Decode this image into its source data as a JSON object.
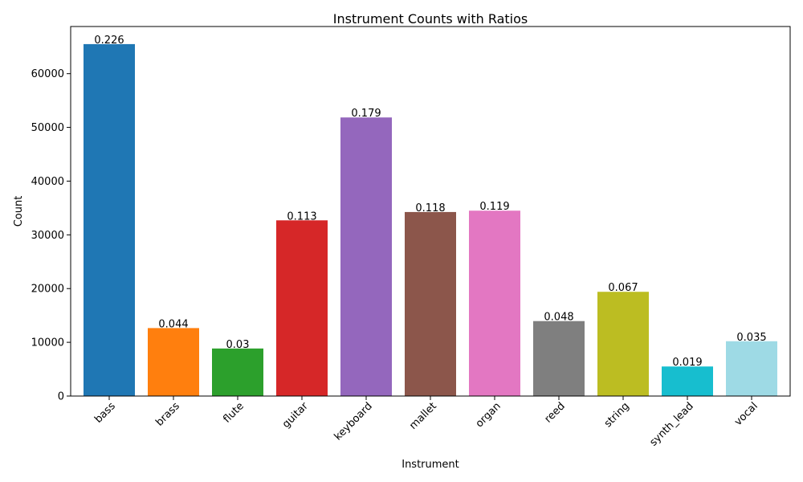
{
  "chart_data": {
    "type": "bar",
    "title": "Instrument Counts with Ratios",
    "xlabel": "Instrument",
    "ylabel": "Count",
    "categories": [
      "bass",
      "brass",
      "flute",
      "guitar",
      "keyboard",
      "mallet",
      "organ",
      "reed",
      "string",
      "synth_lead",
      "vocal"
    ],
    "values": [
      65500,
      12650,
      8850,
      32700,
      51850,
      34250,
      34500,
      13950,
      19400,
      5500,
      10200
    ],
    "ratios": [
      "0.226",
      "0.044",
      "0.03",
      "0.113",
      "0.179",
      "0.118",
      "0.119",
      "0.048",
      "0.067",
      "0.019",
      "0.035"
    ],
    "colors": [
      "#1f77b4",
      "#ff7f0e",
      "#2ca02c",
      "#d62728",
      "#9467bd",
      "#8c564b",
      "#e377c2",
      "#7f7f7f",
      "#bcbd22",
      "#17becf",
      "#9edae5"
    ],
    "ylim": [
      0,
      68775
    ],
    "yticks": [
      0,
      10000,
      20000,
      30000,
      40000,
      50000,
      60000
    ],
    "grid": false,
    "legend": false
  }
}
